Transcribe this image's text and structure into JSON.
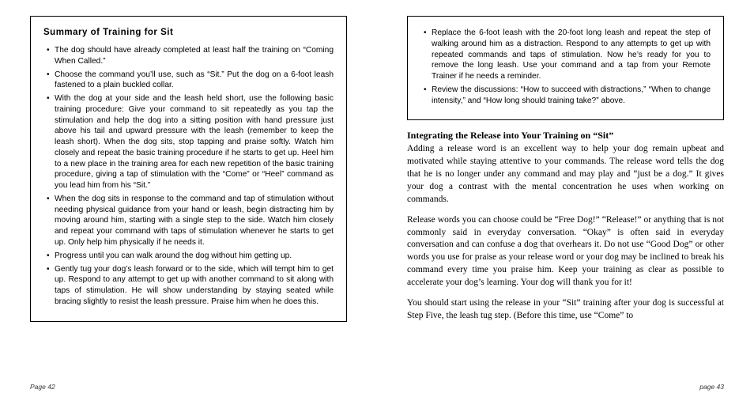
{
  "left": {
    "box_title": "Summary of Training for Sit",
    "bullets": [
      "The dog should have already completed at least half the training on “Coming When Called.”",
      "Choose the command you’ll use, such as “Sit.”  Put the dog on a 6-foot leash fastened to a plain buckled collar.",
      "With the dog at your side and the leash held short, use the following basic training procedure: Give your command to sit repeatedly as you tap the stimulation and help the dog into a sitting position with hand pressure just above his tail and upward pressure with the leash (remember to keep the leash short).  When the dog sits, stop tapping and praise softly.  Watch him closely and repeat the basic training procedure if he starts to get up.  Heel him to a new place in the training area for each new repetition of the basic training procedure, giving a tap of stimulation with the “Come” or “Heel” command as you lead him from his “Sit.”",
      "When the dog sits in response to the command and tap of stimulation without needing physical guidance from your hand or leash, begin distracting him by moving around him, starting with a single step to the side.  Watch him closely and repeat your command with taps of stimulation whenever he starts to get up.  Only help him physically if he needs it.",
      "Progress until you can walk around the dog without him getting up.",
      "Gently tug your dog’s leash forward or to the side, which will tempt him to get up.  Respond to any attempt to get up with another command to sit along with taps of stimulation.  He will show understanding by staying seated while bracing slightly to resist the leash pressure.  Praise him when he does this."
    ],
    "page_num": "Page 42"
  },
  "right": {
    "bullets": [
      "Replace the 6-foot leash with the 20-foot long leash and repeat the step of walking around him as a distraction.  Respond to any attempts to get up with repeated commands and taps of stimulation.  Now he’s ready for you to remove the long leash.  Use your command and a tap from your Remote Trainer if he needs a reminder.",
      "Review the discussions: “How to succeed with distractions,” “When to change intensity,” and “How long should training take?” above."
    ],
    "heading": "Integrating the Release into Your Training on “Sit”",
    "para1": "Adding a release word is an excellent way to help your dog remain upbeat and motivated while staying attentive to your commands.  The release word tells the dog that he is no longer under any command and may play and “just be a dog.”  It gives your dog a contrast with the mental concentration he uses when working on commands.",
    "para2": "Release words you can choose could be “Free Dog!” “Release!” or anything that is not commonly said in everyday conversation.  “Okay” is often said in everyday conversation and can confuse a dog that overhears it.  Do not use “Good Dog” or other words you use for praise as your release word or your dog may be inclined to break his command every time you praise him.  Keep your training as clear as possible to accelerate your dog’s learning.  Your dog will thank you for it!",
    "para3": "You should start using the release in your “Sit” training after your dog is successful at Step Five, the leash tug step.  (Before this time, use “Come” to",
    "page_num": "page 43"
  }
}
